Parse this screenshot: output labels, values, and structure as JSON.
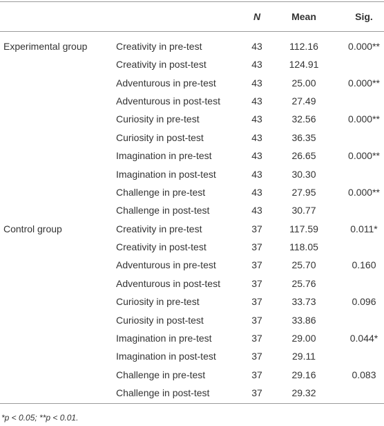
{
  "table": {
    "header": [
      "N",
      "Mean",
      "Sig."
    ],
    "rows": [
      [
        "Experimental group",
        "Creativity in pre-test",
        "43",
        "112.16",
        "0.000**"
      ],
      [
        null,
        "Creativity in post-test",
        "43",
        "124.91",
        null
      ],
      [
        null,
        "Adventurous in pre-test",
        "43",
        "25.00",
        "0.000**"
      ],
      [
        null,
        "Adventurous in post-test",
        "43",
        "27.49",
        null
      ],
      [
        null,
        "Curiosity in pre-test",
        "43",
        "32.56",
        "0.000**"
      ],
      [
        null,
        "Curiosity in post-test",
        "43",
        "36.35",
        null
      ],
      [
        null,
        "Imagination in pre-test",
        "43",
        "26.65",
        "0.000**"
      ],
      [
        null,
        "Imagination in post-test",
        "43",
        "30.30",
        null
      ],
      [
        null,
        "Challenge in pre-test",
        "43",
        "27.95",
        "0.000**"
      ],
      [
        null,
        "Challenge in post-test",
        "43",
        "30.77",
        null
      ],
      [
        "Control group",
        "Creativity in pre-test",
        "37",
        "117.59",
        "0.011*"
      ],
      [
        null,
        "Creativity in post-test",
        "37",
        "118.05",
        null
      ],
      [
        null,
        "Adventurous in pre-test",
        "37",
        "25.70",
        "0.160"
      ],
      [
        null,
        "Adventurous in post-test",
        "37",
        "25.76",
        null
      ],
      [
        null,
        "Curiosity in pre-test",
        "37",
        "33.73",
        "0.096"
      ],
      [
        null,
        "Curiosity in post-test",
        "37",
        "33.86",
        null
      ],
      [
        null,
        "Imagination in pre-test",
        "37",
        "29.00",
        "0.044*"
      ],
      [
        null,
        "Imagination in post-test",
        "37",
        "29.11",
        null
      ],
      [
        null,
        "Challenge in pre-test",
        "37",
        "29.16",
        "0.083"
      ],
      [
        null,
        "Challenge in post-test",
        "37",
        "29.32",
        null
      ]
    ],
    "footnote": "*p < 0.05; **p < 0.01."
  }
}
